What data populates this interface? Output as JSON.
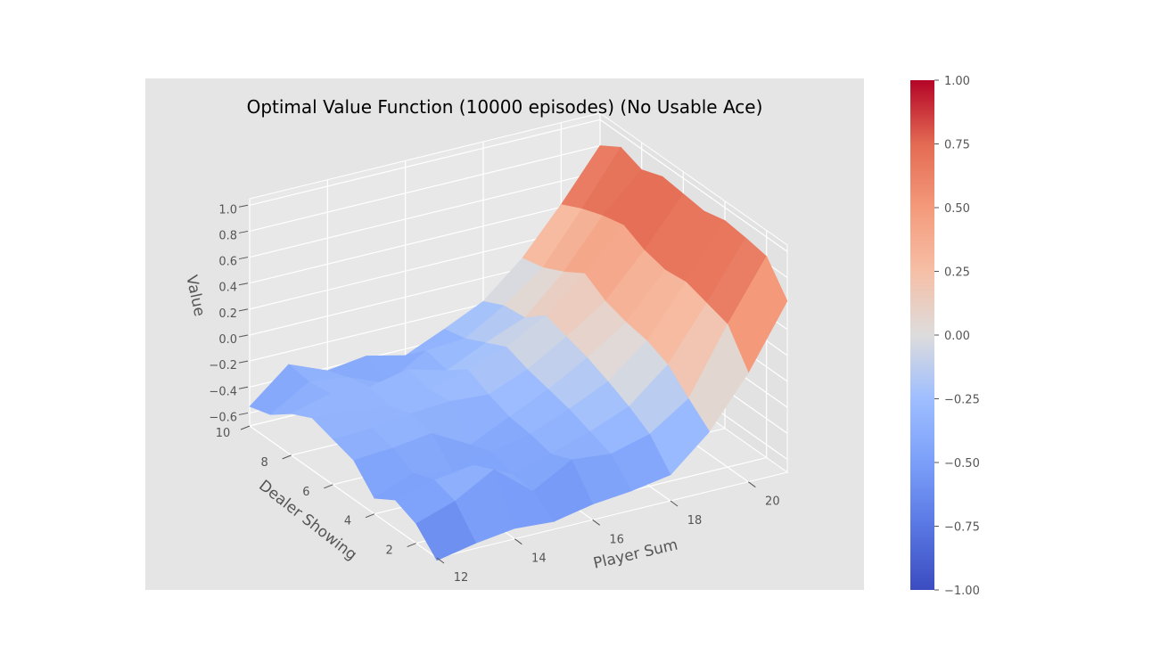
{
  "chart_data": {
    "type": "surface",
    "title": "Optimal Value Function (10000 episodes) (No Usable Ace)",
    "xlabel": "Player Sum",
    "ylabel": "Dealer Showing",
    "zlabel": "Value",
    "x": [
      12,
      13,
      14,
      15,
      16,
      17,
      18,
      19,
      20,
      21
    ],
    "y": [
      1,
      2,
      3,
      4,
      5,
      6,
      7,
      8,
      9,
      10
    ],
    "x_ticks": [
      "12",
      "14",
      "16",
      "18",
      "20"
    ],
    "y_ticks": [
      "2",
      "4",
      "6",
      "8",
      "10"
    ],
    "z_ticks": [
      "−0.6",
      "−0.4",
      "−0.2",
      "0.0",
      "0.2",
      "0.4",
      "0.6",
      "0.8",
      "1.0"
    ],
    "zlim": [
      -0.7,
      1.05
    ],
    "grid": true,
    "colormap": "coolwarm",
    "colorbar": {
      "range": [
        -1.0,
        1.0
      ],
      "ticks": [
        "1.00",
        "0.75",
        "0.50",
        "0.25",
        "0.00",
        "−0.25",
        "−0.50",
        "−0.75",
        "−1.00"
      ]
    },
    "z": [
      [
        -0.72,
        -0.66,
        -0.62,
        -0.64,
        -0.58,
        -0.55,
        -0.5,
        -0.24,
        0.14,
        0.62
      ],
      [
        -0.55,
        -0.45,
        -0.28,
        -0.52,
        -0.35,
        -0.38,
        -0.3,
        -0.1,
        0.4,
        0.85
      ],
      [
        -0.48,
        -0.4,
        -0.36,
        -0.5,
        -0.42,
        -0.32,
        -0.2,
        0.05,
        0.45,
        0.88
      ],
      [
        -0.58,
        -0.46,
        -0.52,
        -0.44,
        -0.38,
        -0.26,
        -0.12,
        0.12,
        0.5,
        0.9
      ],
      [
        -0.4,
        -0.38,
        -0.34,
        -0.5,
        -0.36,
        -0.22,
        -0.05,
        0.15,
        0.48,
        0.86
      ],
      [
        -0.35,
        -0.34,
        -0.3,
        -0.28,
        -0.3,
        -0.18,
        0.0,
        0.2,
        0.52,
        0.88
      ],
      [
        -0.3,
        -0.32,
        -0.36,
        -0.3,
        -0.22,
        -0.12,
        0.05,
        0.3,
        0.6,
        0.9
      ],
      [
        -0.38,
        -0.3,
        -0.32,
        -0.26,
        -0.34,
        -0.2,
        -0.08,
        0.2,
        0.56,
        0.84
      ],
      [
        -0.5,
        -0.32,
        -0.36,
        -0.48,
        -0.3,
        -0.28,
        -0.1,
        0.12,
        0.5,
        0.9
      ],
      [
        -0.55,
        -0.3,
        -0.42,
        -0.38,
        -0.45,
        -0.32,
        -0.18,
        0.08,
        0.42,
        0.8
      ]
    ]
  },
  "colors": {
    "pane": "#e5e5e5",
    "grid": "#ffffff",
    "text": "#555555",
    "title": "#000000"
  }
}
